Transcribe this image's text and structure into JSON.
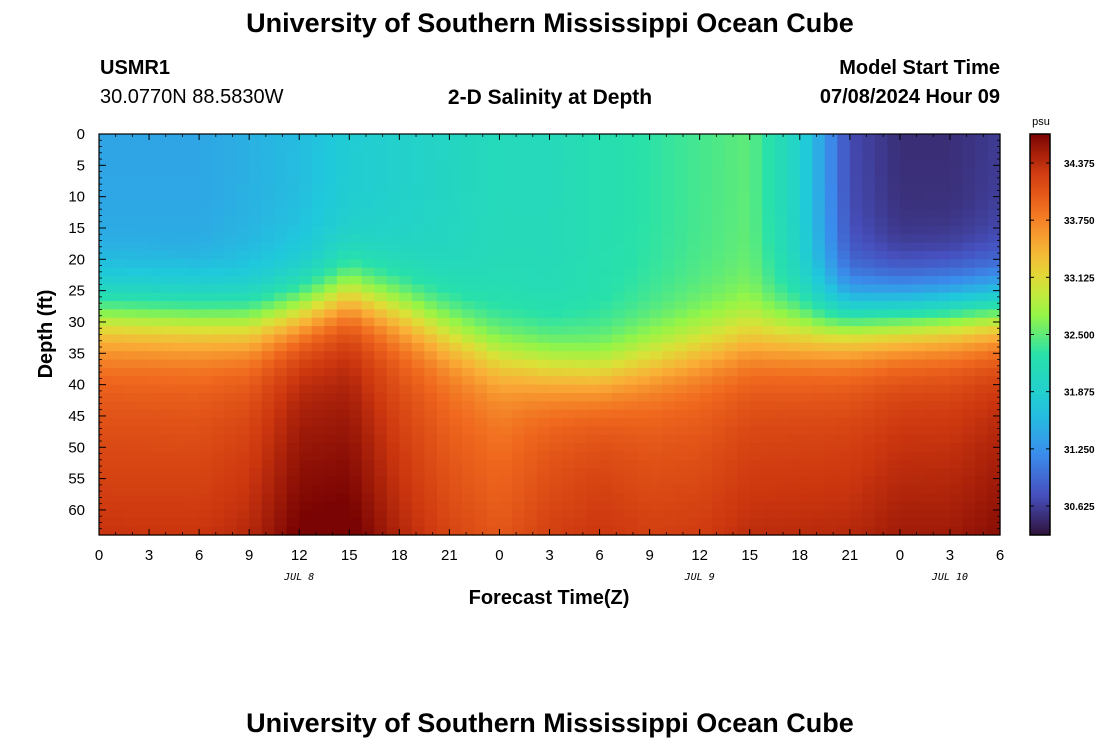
{
  "header": {
    "title": "University of Southern Mississippi Ocean Cube",
    "station_id": "USMR1",
    "coordinates": "30.0770N  88.5830W",
    "plot_title": "2-D Salinity at Depth",
    "model_start_label": "Model Start Time",
    "model_start_value": "07/08/2024 Hour 09"
  },
  "footer": {
    "title": "University of Southern Mississippi Ocean Cube"
  },
  "chart_data": {
    "type": "heatmap",
    "title": "2-D Salinity at Depth",
    "xlabel": "Forecast Time(Z)",
    "ylabel": "Depth (ft)",
    "x_tick_labels": [
      "0",
      "3",
      "6",
      "9",
      "12",
      "15",
      "18",
      "21",
      "0",
      "3",
      "6",
      "9",
      "12",
      "15",
      "18",
      "21",
      "0",
      "3",
      "6"
    ],
    "x_date_labels": [
      {
        "label": "JUL 8",
        "tick_index": 4
      },
      {
        "label": "JUL 9",
        "tick_index": 12
      },
      {
        "label": "JUL 10",
        "tick_index": 17
      }
    ],
    "x_range_hours": [
      0,
      54
    ],
    "y_ticks": [
      0,
      5,
      10,
      15,
      20,
      25,
      30,
      35,
      40,
      45,
      50,
      55,
      60
    ],
    "y_range_ft": [
      0,
      64
    ],
    "y_reversed": true,
    "colorbar": {
      "unit": "psu",
      "tick_labels": [
        "34.375",
        "33.750",
        "33.125",
        "32.500",
        "31.875",
        "31.250",
        "30.625"
      ],
      "range": [
        30.3,
        34.7
      ]
    },
    "times_hours": [
      0,
      6,
      9,
      12,
      15,
      18,
      21,
      24,
      27,
      30,
      33,
      36,
      39,
      42,
      45,
      48,
      51,
      54
    ],
    "profiles": [
      {
        "iso": 28.5,
        "deep": 33.9,
        "top": 31.4
      },
      {
        "iso": 29.0,
        "deep": 33.9,
        "top": 31.4
      },
      {
        "iso": 29.5,
        "deep": 34.0,
        "top": 31.5
      },
      {
        "iso": 28.0,
        "deep": 34.3,
        "top": 31.6
      },
      {
        "iso": 25.0,
        "deep": 34.3,
        "top": 31.8
      },
      {
        "iso": 27.5,
        "deep": 34.0,
        "top": 31.9
      },
      {
        "iso": 31.0,
        "deep": 33.8,
        "top": 32.0
      },
      {
        "iso": 34.5,
        "deep": 33.7,
        "top": 32.1
      },
      {
        "iso": 36.5,
        "deep": 33.9,
        "top": 32.1
      },
      {
        "iso": 37.5,
        "deep": 34.0,
        "top": 32.2
      },
      {
        "iso": 35.5,
        "deep": 33.9,
        "top": 32.3
      },
      {
        "iso": 33.5,
        "deep": 33.9,
        "top": 32.4
      },
      {
        "iso": 32.0,
        "deep": 34.0,
        "top": 32.5
      },
      {
        "iso": 31.0,
        "deep": 34.0,
        "top": 31.9
      },
      {
        "iso": 29.5,
        "deep": 34.0,
        "top": 30.7
      },
      {
        "iso": 29.0,
        "deep": 34.1,
        "top": 30.5
      },
      {
        "iso": 28.5,
        "deep": 34.1,
        "top": 30.5
      },
      {
        "iso": 28.0,
        "deep": 34.2,
        "top": 30.6
      }
    ]
  }
}
